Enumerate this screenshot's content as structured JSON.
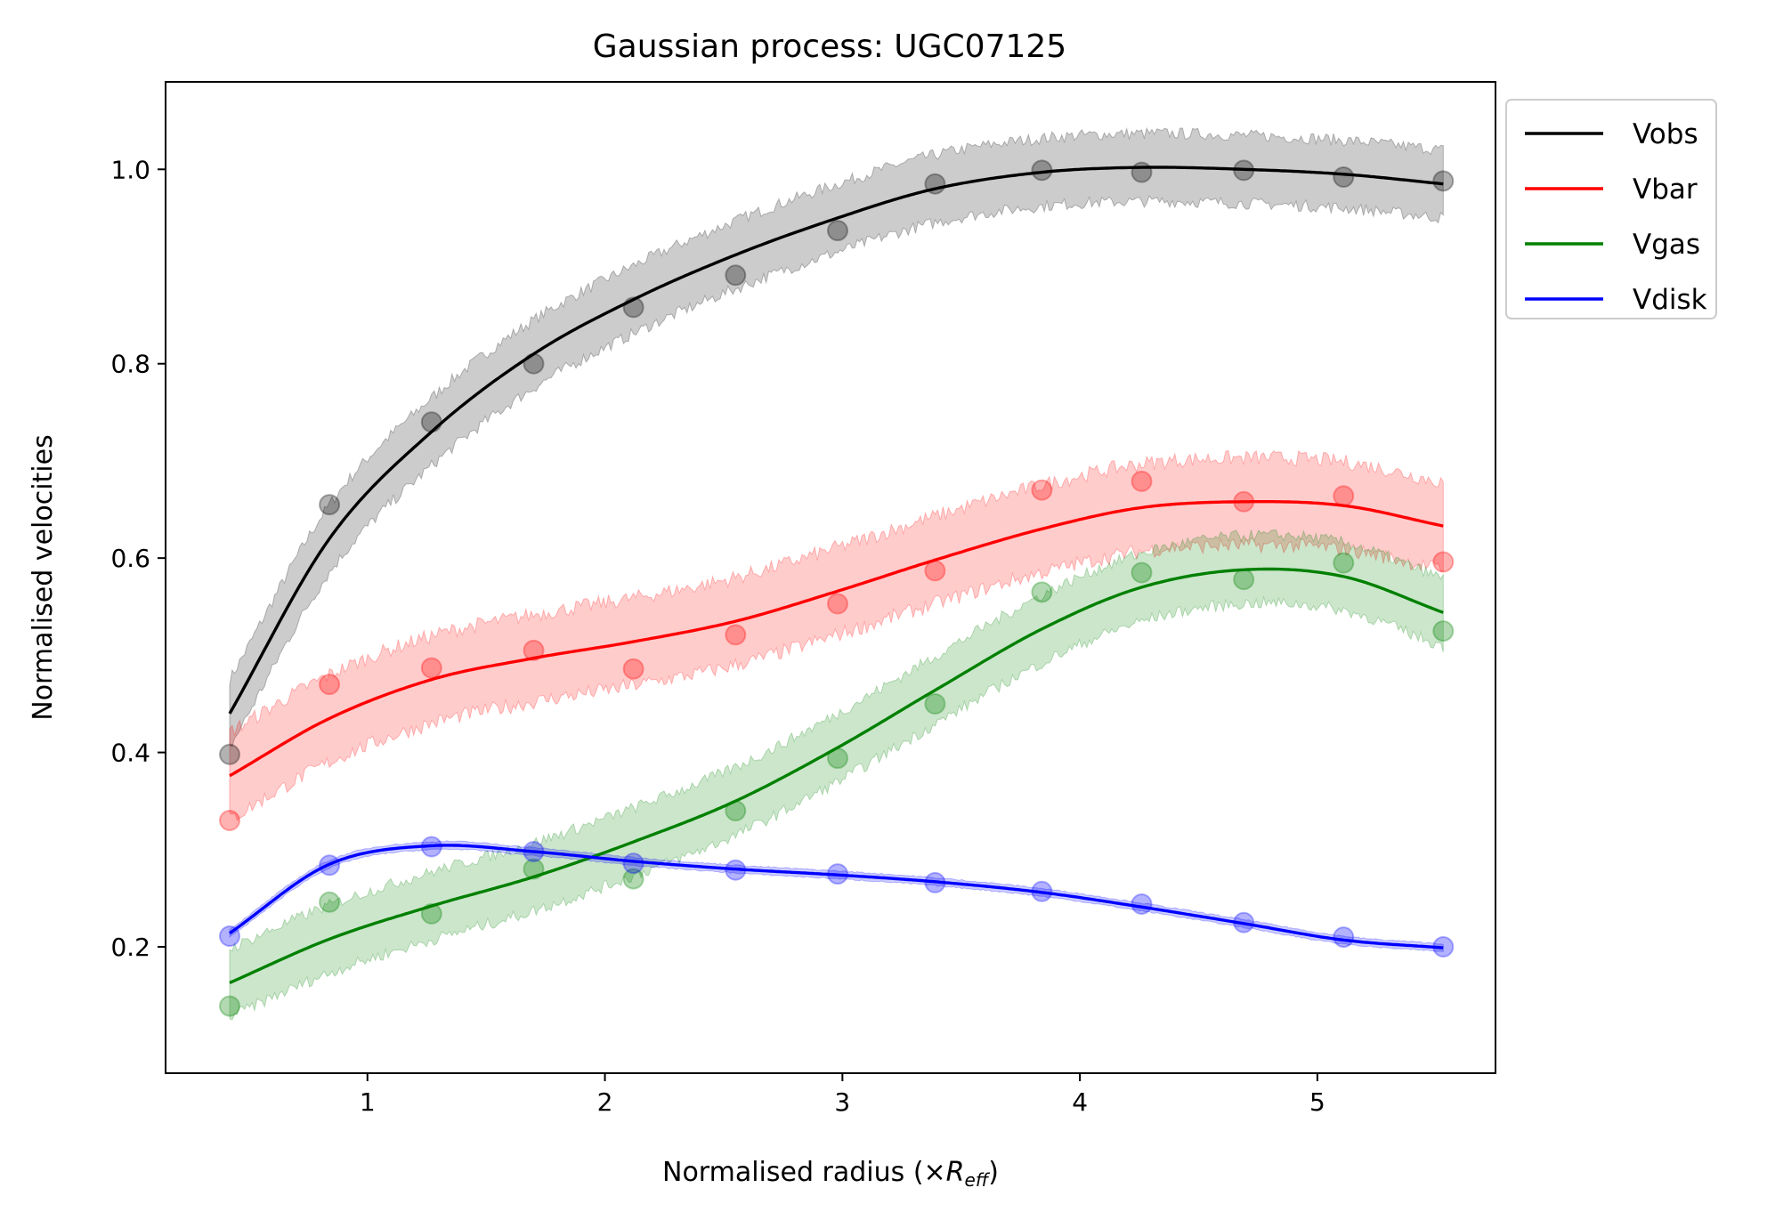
{
  "chart_data": {
    "type": "line",
    "title": "Gaussian process: UGC07125",
    "xlabel": "Normalised radius (×",
    "xlabel_symbol": "R",
    "xlabel_subscript": "eff",
    "xlabel_suffix": ")",
    "ylabel": "Normalised velocities",
    "xlim": [
      0.15,
      5.75
    ],
    "ylim": [
      0.07,
      1.09
    ],
    "xticks": [
      1,
      2,
      3,
      4,
      5
    ],
    "xtick_labels": [
      "1",
      "2",
      "3",
      "4",
      "5"
    ],
    "yticks": [
      0.2,
      0.4,
      0.6,
      0.8,
      1.0
    ],
    "ytick_labels": [
      "0.2",
      "0.4",
      "0.6",
      "0.8",
      "1.0"
    ],
    "grid": false,
    "legend_position": "outside-top-right",
    "x": [
      0.42,
      0.84,
      1.27,
      1.7,
      2.12,
      2.55,
      2.98,
      3.39,
      3.84,
      4.26,
      4.69,
      5.11,
      5.53
    ],
    "series": [
      {
        "name": "Vobs",
        "color": "#000000",
        "points": [
          0.398,
          0.655,
          0.74,
          0.8,
          0.858,
          0.891,
          0.937,
          0.985,
          0.999,
          0.997,
          0.999,
          0.992,
          0.988
        ],
        "fit": [
          0.44,
          0.62,
          0.73,
          0.81,
          0.866,
          0.912,
          0.95,
          0.98,
          0.997,
          1.002,
          1.0,
          0.995,
          0.985
        ],
        "band_halfwidth": 0.035
      },
      {
        "name": "Vbar",
        "color": "#ff0000",
        "points": [
          0.33,
          0.47,
          0.487,
          0.505,
          0.486,
          0.521,
          0.553,
          0.587,
          0.67,
          0.679,
          0.658,
          0.664,
          0.596
        ],
        "fit": [
          0.376,
          0.435,
          0.475,
          0.497,
          0.514,
          0.535,
          0.566,
          0.598,
          0.63,
          0.652,
          0.658,
          0.654,
          0.633
        ],
        "band_halfwidth": 0.045
      },
      {
        "name": "Vgas",
        "color": "#008000",
        "points": [
          0.139,
          0.246,
          0.234,
          0.28,
          0.27,
          0.34,
          0.394,
          0.45,
          0.565,
          0.585,
          0.578,
          0.595,
          0.525
        ],
        "fit": [
          0.163,
          0.208,
          0.242,
          0.272,
          0.308,
          0.35,
          0.405,
          0.464,
          0.527,
          0.57,
          0.588,
          0.581,
          0.544
        ],
        "band_halfwidth": 0.035
      },
      {
        "name": "Vdisk",
        "color": "#0000ff",
        "points": [
          0.211,
          0.284,
          0.303,
          0.298,
          0.286,
          0.279,
          0.275,
          0.266,
          0.257,
          0.244,
          0.225,
          0.21,
          0.2
        ],
        "fit": [
          0.214,
          0.285,
          0.304,
          0.298,
          0.288,
          0.28,
          0.274,
          0.267,
          0.256,
          0.241,
          0.224,
          0.207,
          0.199
        ],
        "band_halfwidth": 0.004
      }
    ]
  }
}
